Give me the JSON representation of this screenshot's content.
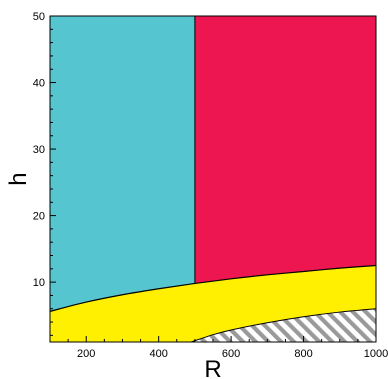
{
  "chart_data": {
    "type": "area",
    "title": "",
    "xlabel": "R",
    "ylabel": "h",
    "xlim": [
      100,
      1000
    ],
    "ylim": [
      1,
      50
    ],
    "x_ticks": [
      200,
      400,
      600,
      800,
      1000
    ],
    "y_ticks": [
      10,
      20,
      30,
      40,
      50
    ],
    "grid": false,
    "legend": "none",
    "boundaries": {
      "vertical_divider_x": 500,
      "upper_curve": {
        "x": [
          100,
          200,
          300,
          400,
          500,
          600,
          700,
          800,
          900,
          1000
        ],
        "y": [
          5.6,
          7.0,
          8.1,
          9.0,
          9.8,
          10.5,
          11.1,
          11.6,
          12.1,
          12.5
        ]
      },
      "lower_curve": {
        "x": [
          490,
          550,
          600,
          700,
          800,
          900,
          1000
        ],
        "y": [
          1.0,
          2.1,
          2.8,
          3.9,
          4.8,
          5.5,
          6.0
        ]
      }
    },
    "regions": [
      {
        "name": "cyan-region",
        "color": "#55c6cf"
      },
      {
        "name": "magenta-region",
        "color": "#ee1651"
      },
      {
        "name": "yellow-region",
        "color": "#ffef00"
      },
      {
        "name": "hatched-region",
        "color": "#ffffff",
        "hatch": "#9a9a9a"
      }
    ]
  }
}
